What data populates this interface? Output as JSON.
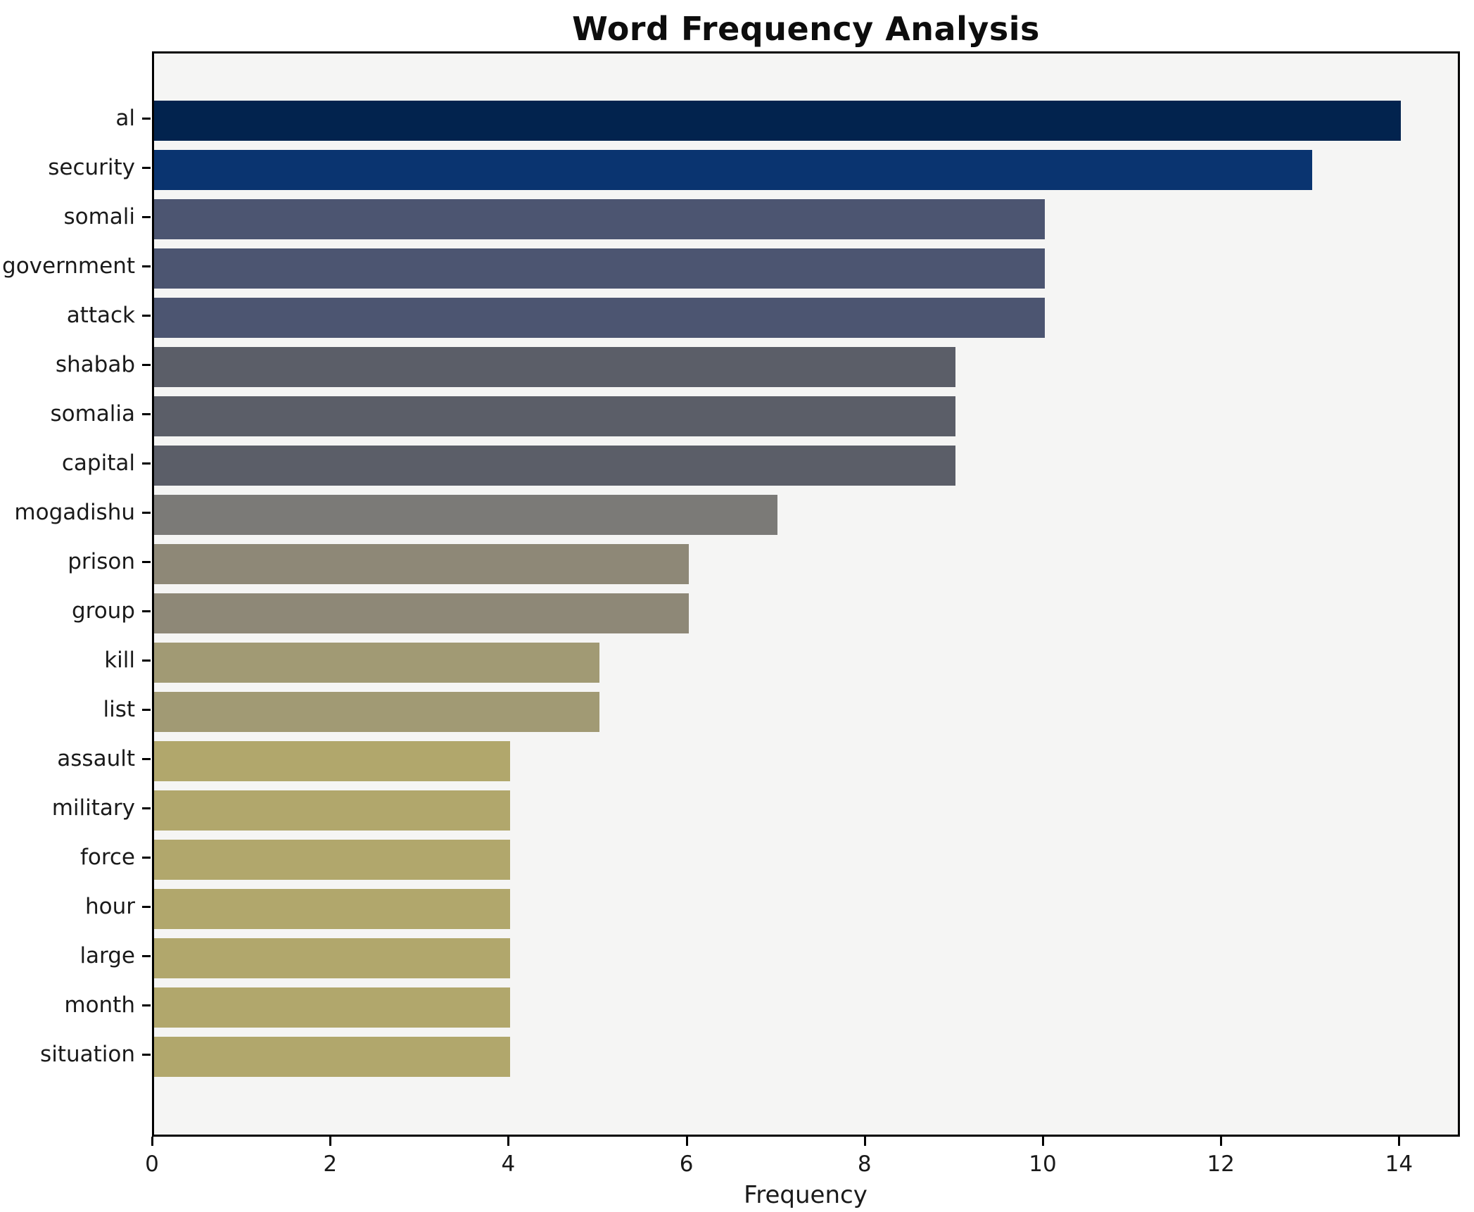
{
  "chart_data": {
    "type": "bar",
    "orientation": "horizontal",
    "title": "Word Frequency Analysis",
    "xlabel": "Frequency",
    "ylabel": "",
    "categories": [
      "al",
      "security",
      "somali",
      "government",
      "attack",
      "shabab",
      "somalia",
      "capital",
      "mogadishu",
      "prison",
      "group",
      "kill",
      "list",
      "assault",
      "military",
      "force",
      "hour",
      "large",
      "month",
      "situation"
    ],
    "values": [
      14,
      13,
      10,
      10,
      10,
      9,
      9,
      9,
      7,
      6,
      6,
      5,
      5,
      4,
      4,
      4,
      4,
      4,
      4,
      4
    ],
    "bar_colors": [
      "#02234e",
      "#0a3470",
      "#4c5571",
      "#4c5571",
      "#4c5571",
      "#5b5e68",
      "#5b5e68",
      "#5b5e68",
      "#7b7a77",
      "#8e8877",
      "#8e8877",
      "#a19a74",
      "#a19a74",
      "#b1a76c",
      "#b1a76c",
      "#b1a76c",
      "#b1a76c",
      "#b1a76c",
      "#b1a76c",
      "#b1a76c"
    ],
    "x_ticks": [
      0,
      2,
      4,
      6,
      8,
      10,
      12,
      14
    ],
    "xlim": [
      0,
      14.7
    ],
    "grid": false,
    "legend": null,
    "plot_background": "#f5f5f4",
    "axis_color": "#000000",
    "text_color": "#1a1a1a"
  }
}
